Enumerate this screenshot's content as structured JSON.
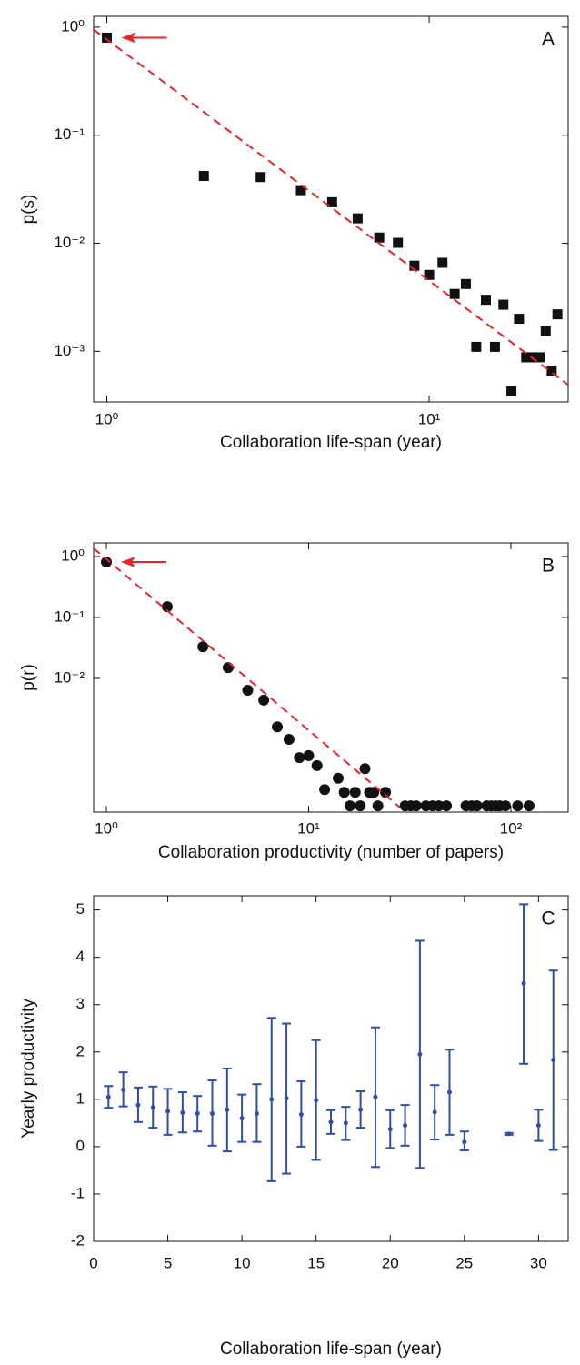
{
  "chart_data": [
    {
      "type": "scatter",
      "label": "A",
      "xlabel": "Collaboration life-span (year)",
      "ylabel": "p(s)",
      "xscale": "log",
      "yscale": "log",
      "xlim": [
        0.91,
        27
      ],
      "ylim": [
        0.00034,
        1.26
      ],
      "xticks": [
        {
          "value": 1,
          "label": "10⁰"
        },
        {
          "value": 10,
          "label": "10¹"
        }
      ],
      "yticks": [
        {
          "value": 1,
          "label": "10⁰"
        },
        {
          "value": 0.1,
          "label": "10⁻¹"
        },
        {
          "value": 0.01,
          "label": "10⁻²"
        },
        {
          "value": 0.001,
          "label": "10⁻³"
        }
      ],
      "arrow_color": "#e8232a",
      "series": [
        {
          "type": "scatter",
          "marker": "square",
          "color": "#111111",
          "x": [
            1,
            2,
            3,
            4,
            5,
            6,
            7,
            8,
            9,
            10,
            11,
            12,
            13,
            14,
            15,
            16,
            17,
            18,
            19,
            20,
            21,
            22,
            23,
            24,
            25
          ],
          "values": [
            0.8,
            0.042,
            0.041,
            0.031,
            0.024,
            0.017,
            0.0113,
            0.0101,
            0.0062,
            0.0051,
            0.0066,
            0.0034,
            0.0042,
            0.0011,
            0.003,
            0.0011,
            0.0027,
            0.00043,
            0.002,
            0.00088,
            0.00088,
            0.00088,
            0.00154,
            0.00066,
            0.0022
          ]
        },
        {
          "type": "line",
          "dashed": true,
          "color": "#e8232a",
          "x": [
            0.91,
            27
          ],
          "values": [
            0.95,
            0.00049
          ]
        }
      ]
    },
    {
      "type": "scatter",
      "label": "B",
      "xlabel": "Collaboration productivity (number of papers)",
      "ylabel": "p(r)",
      "xscale": "log",
      "yscale": "log",
      "xlim": [
        0.865,
        192
      ],
      "ylim": [
        6.4e-05,
        1.67
      ],
      "xticks": [
        {
          "value": 1,
          "label": "10⁰"
        },
        {
          "value": 10,
          "label": "10¹"
        },
        {
          "value": 100,
          "label": "10²"
        }
      ],
      "yticks": [
        {
          "value": 1,
          "label": "10⁰"
        },
        {
          "value": 0.1,
          "label": "10⁻¹"
        },
        {
          "value": 0.01,
          "label": "10⁻²"
        }
      ],
      "arrow_color": "#e8232a",
      "series": [
        {
          "type": "scatter",
          "marker": "circle",
          "color": "#111111",
          "x": [
            1,
            2,
            3,
            4,
            5,
            6,
            7,
            8,
            9,
            10,
            11,
            12,
            14,
            15,
            16,
            17,
            18,
            19,
            20,
            21,
            22,
            24,
            30,
            32,
            34,
            38,
            41,
            44,
            48,
            60,
            64,
            68,
            76,
            80,
            84,
            88,
            94,
            108,
            123
          ],
          "values": [
            0.81,
            0.15,
            0.033,
            0.015,
            0.0064,
            0.0044,
            0.0016,
            0.001,
            0.0005,
            0.00054,
            0.00037,
            0.00015,
            0.00023,
            0.000135,
            8.1e-05,
            0.000135,
            8.1e-05,
            0.00033,
            0.000135,
            0.000135,
            8.1e-05,
            0.000135,
            8.1e-05,
            8.1e-05,
            8.1e-05,
            8.1e-05,
            8.1e-05,
            8.1e-05,
            8.1e-05,
            8.1e-05,
            8.1e-05,
            8.1e-05,
            8.1e-05,
            8.1e-05,
            8.1e-05,
            8.1e-05,
            8.1e-05,
            8.1e-05,
            8.1e-05
          ]
        },
        {
          "type": "line",
          "dashed": true,
          "color": "#e8232a",
          "x": [
            0.865,
            28.3
          ],
          "values": [
            1.36,
            7.6e-05
          ]
        }
      ]
    },
    {
      "type": "errorbar",
      "label": "C",
      "xlabel": "Collaboration life-span (year)",
      "ylabel": "Yearly productivity",
      "xscale": "linear",
      "yscale": "linear",
      "xlim": [
        0,
        32
      ],
      "ylim": [
        -2,
        5.3
      ],
      "xticks": [
        0,
        5,
        10,
        15,
        20,
        25,
        30
      ],
      "yticks": [
        -2,
        -1,
        0,
        1,
        2,
        3,
        4,
        5
      ],
      "series": [
        {
          "type": "errorbar",
          "color": "#2e4fa3",
          "x": [
            1,
            2,
            3,
            4,
            5,
            6,
            7,
            8,
            9,
            10,
            11,
            12,
            13,
            14,
            15,
            16,
            17,
            18,
            19,
            20,
            21,
            22,
            23,
            24,
            25,
            28,
            29,
            30,
            31
          ],
          "values": [
            1.05,
            1.2,
            0.88,
            0.83,
            0.75,
            0.72,
            0.7,
            0.7,
            0.78,
            0.6,
            0.7,
            1.0,
            1.02,
            0.68,
            0.98,
            0.52,
            0.5,
            0.78,
            1.05,
            0.37,
            0.45,
            1.95,
            0.73,
            1.15,
            0.1,
            0.27,
            3.45,
            0.45,
            1.83
          ],
          "lower": [
            0.82,
            0.85,
            0.52,
            0.4,
            0.25,
            0.3,
            0.32,
            0.02,
            -0.1,
            0.1,
            0.1,
            -0.73,
            -0.57,
            0.0,
            -0.28,
            0.27,
            0.14,
            0.4,
            -0.43,
            -0.03,
            0.02,
            -0.45,
            0.15,
            0.25,
            -0.08,
            0.25,
            1.75,
            0.12,
            -0.07
          ],
          "upper": [
            1.28,
            1.57,
            1.25,
            1.27,
            1.22,
            1.15,
            1.07,
            1.4,
            1.65,
            1.1,
            1.32,
            2.72,
            2.6,
            1.38,
            2.25,
            0.77,
            0.84,
            1.17,
            2.52,
            0.77,
            0.88,
            4.35,
            1.3,
            2.05,
            0.32,
            0.29,
            5.12,
            0.78,
            3.72
          ]
        }
      ]
    }
  ]
}
